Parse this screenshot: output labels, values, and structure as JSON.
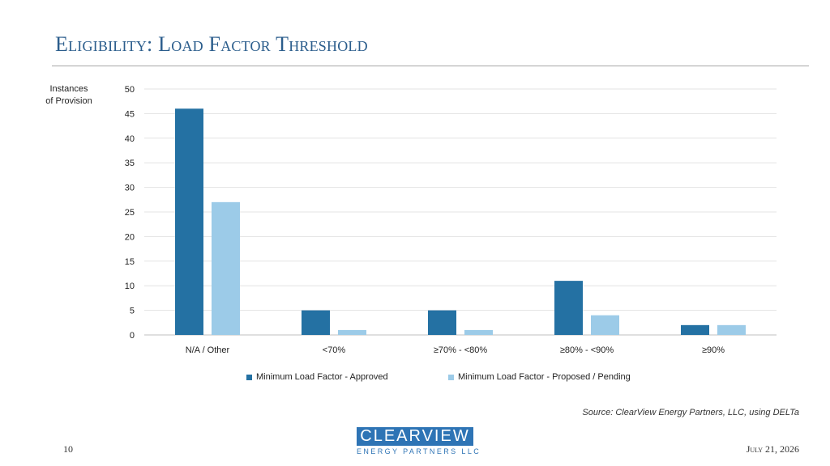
{
  "slide": {
    "title": "Eligibility: Load Factor Threshold",
    "source": "Source: ClearView Energy Partners, LLC, using DELTa",
    "page_number": "10",
    "date": "July 21, 2026",
    "logo_main": "CLEARVIEW",
    "logo_sub": "ENERGY PARTNERS LLC"
  },
  "chart_data": {
    "type": "bar",
    "categories": [
      "N/A / Other",
      "<70%",
      "≥70%  - <80%",
      "≥80%  -  <90%",
      "≥90%"
    ],
    "series": [
      {
        "name": "Minimum Load Factor - Approved",
        "values": [
          46,
          5,
          5,
          11,
          2
        ],
        "color": "#2471a3"
      },
      {
        "name": "Minimum Load Factor - Proposed / Pending",
        "values": [
          27,
          1,
          1,
          4,
          2
        ],
        "color": "#9ccbe8"
      }
    ],
    "ylabel_lines": [
      "Instances",
      "of Provision"
    ],
    "ylim": [
      0,
      50
    ],
    "yticks": [
      0,
      5,
      10,
      15,
      20,
      25,
      30,
      35,
      40,
      45,
      50
    ],
    "grid": true,
    "legend_position": "bottom"
  }
}
